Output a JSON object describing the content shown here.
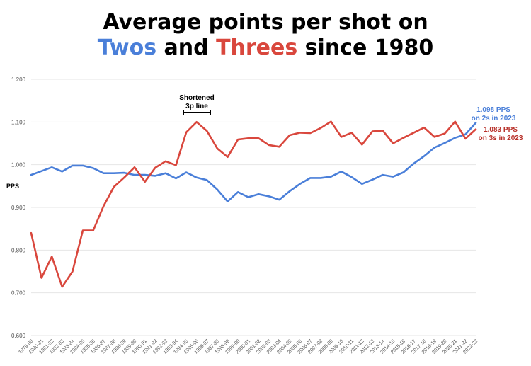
{
  "title": {
    "line1": "Average points per shot on",
    "line2_part1": "Twos",
    "line2_part2": " and ",
    "line2_part3": "Threes",
    "line2_part4": " since 1980"
  },
  "colors": {
    "twos": "#4a7fd9",
    "threes": "#d9473d",
    "twos_text": "#4a7fd9",
    "threes_text": "#d9473d"
  },
  "chart_data": {
    "type": "line",
    "ylabel": "PPS",
    "ylim": [
      0.6,
      1.2
    ],
    "yticks": [
      "0.600",
      "0.700",
      "0.800",
      "0.900",
      "1.000",
      "1.100",
      "1.200"
    ],
    "grid": true,
    "categories": [
      "1979-80",
      "1980-81",
      "1981-82",
      "1982-83",
      "1983-84",
      "1984-85",
      "1985-86",
      "1986-87",
      "1987-88",
      "1988-89",
      "1989-90",
      "1990-91",
      "1991-92",
      "1992-93",
      "1993-94",
      "1994-95",
      "1995-96",
      "1996-97",
      "1997-98",
      "1998-99",
      "1999-00",
      "2000-01",
      "2001-02",
      "2002-03",
      "2003-04",
      "2004-05",
      "2005-06",
      "2006-07",
      "2007-08",
      "2008-09",
      "2009-10",
      "2010-11",
      "2011-12",
      "2012-13",
      "2013-14",
      "2014-15",
      "2015-16",
      "2016-17",
      "2017-18",
      "2018-19",
      "2019-20",
      "2020-21",
      "2021-22",
      "2022-23"
    ],
    "series": [
      {
        "name": "Twos",
        "color": "#4a7fd9",
        "values": [
          0.976,
          0.985,
          0.994,
          0.984,
          0.998,
          0.998,
          0.992,
          0.98,
          0.98,
          0.981,
          0.976,
          0.976,
          0.974,
          0.98,
          0.968,
          0.982,
          0.97,
          0.964,
          0.942,
          0.914,
          0.936,
          0.924,
          0.931,
          0.926,
          0.918,
          0.938,
          0.955,
          0.969,
          0.969,
          0.972,
          0.984,
          0.971,
          0.955,
          0.965,
          0.976,
          0.972,
          0.982,
          1.003,
          1.02,
          1.04,
          1.051,
          1.063,
          1.071,
          1.098
        ]
      },
      {
        "name": "Threes",
        "color": "#d9473d",
        "values": [
          0.84,
          0.735,
          0.785,
          0.714,
          0.75,
          0.846,
          0.846,
          0.903,
          0.948,
          0.97,
          0.994,
          0.96,
          0.993,
          1.008,
          0.999,
          1.076,
          1.1,
          1.079,
          1.038,
          1.018,
          1.059,
          1.062,
          1.062,
          1.046,
          1.042,
          1.069,
          1.075,
          1.074,
          1.086,
          1.101,
          1.065,
          1.075,
          1.047,
          1.078,
          1.08,
          1.05,
          1.063,
          1.075,
          1.087,
          1.065,
          1.073,
          1.101,
          1.061,
          1.083
        ]
      }
    ],
    "annotations": {
      "shortened": [
        "Shortened",
        "3p line"
      ],
      "twos_label": [
        "1.098 PPS",
        "on 2s in 2023"
      ],
      "threes_label": [
        "1.083 PPS",
        "on 3s in 2023"
      ]
    }
  }
}
